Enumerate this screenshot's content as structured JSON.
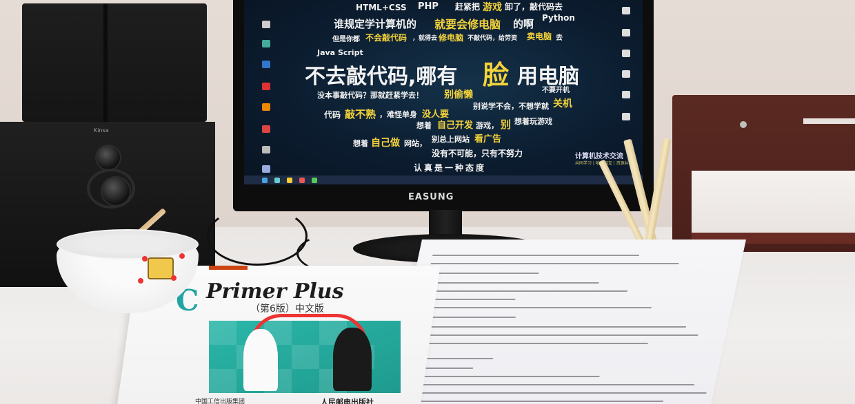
{
  "screen": {
    "words": [
      {
        "text": "HTML+CSS",
        "color": "white"
      },
      {
        "text": "PHP",
        "color": "white"
      },
      {
        "text": "赶紧把",
        "color": "white"
      },
      {
        "text": "游戏",
        "color": "yellow"
      },
      {
        "text": "卸了，敲代码去",
        "color": "white"
      },
      {
        "text": "谁规定学计算机的",
        "color": "white"
      },
      {
        "text": "就要会修电脑",
        "color": "yellow"
      },
      {
        "text": "的啊",
        "color": "white"
      },
      {
        "text": "Python",
        "color": "white"
      },
      {
        "text": "但是你都",
        "color": "white"
      },
      {
        "text": "不会敲代码",
        "color": "yellow"
      },
      {
        "text": "，就得去",
        "color": "white"
      },
      {
        "text": "修电脑",
        "color": "yellow"
      },
      {
        "text": "不敲代码，给劳资",
        "color": "white"
      },
      {
        "text": "卖电脑",
        "color": "yellow"
      },
      {
        "text": "去",
        "color": "white"
      },
      {
        "text": "Java Script",
        "color": "white"
      },
      {
        "text": "不去敲代码,哪有",
        "color": "white"
      },
      {
        "text": "脸",
        "color": "yellow"
      },
      {
        "text": "用电脑",
        "color": "white"
      },
      {
        "text": "没本事敲代码？那就赶紧学去！",
        "color": "white"
      },
      {
        "text": "别偷懒",
        "color": "yellow"
      },
      {
        "text": "不要开机",
        "color": "white"
      },
      {
        "text": "代码",
        "color": "white"
      },
      {
        "text": "敲不熟",
        "color": "yellow"
      },
      {
        "text": "，难怪单身",
        "color": "white"
      },
      {
        "text": "没人要",
        "color": "yellow"
      },
      {
        "text": "别说学不会，不想学就",
        "color": "white"
      },
      {
        "text": "关机",
        "color": "yellow"
      },
      {
        "text": "想着",
        "color": "white"
      },
      {
        "text": "自己开发",
        "color": "yellow"
      },
      {
        "text": "游戏，",
        "color": "white"
      },
      {
        "text": "别",
        "color": "yellow"
      },
      {
        "text": "想着玩游戏",
        "color": "white"
      },
      {
        "text": "想着",
        "color": "white"
      },
      {
        "text": "自己做",
        "color": "yellow"
      },
      {
        "text": "网站，",
        "color": "white"
      },
      {
        "text": "别总上网站",
        "color": "white"
      },
      {
        "text": "看广告",
        "color": "yellow"
      },
      {
        "text": "没有不可能，只有不努力",
        "color": "white"
      },
      {
        "text": "认真是一种态度",
        "color": "white"
      }
    ],
    "brand": "计算机技术交流",
    "brand_sub": "共同学习 | 咱们相互 | 资源共享",
    "monitor_logo": "EASUNG"
  },
  "speaker": {
    "brand": "Kinsa"
  },
  "book": {
    "letter": "C",
    "title": "Primer Plus",
    "subtitle": "（第6版）中文版",
    "publisher": "人民邮电出版社",
    "series": "中国工信出版集团"
  },
  "colors": {
    "screen_bg": "#0c1d30",
    "highlight": "#f4d23a",
    "book_accent": "#23a3a3",
    "board_green": "#2ab7a9",
    "shelf": "#4a1f1a"
  }
}
